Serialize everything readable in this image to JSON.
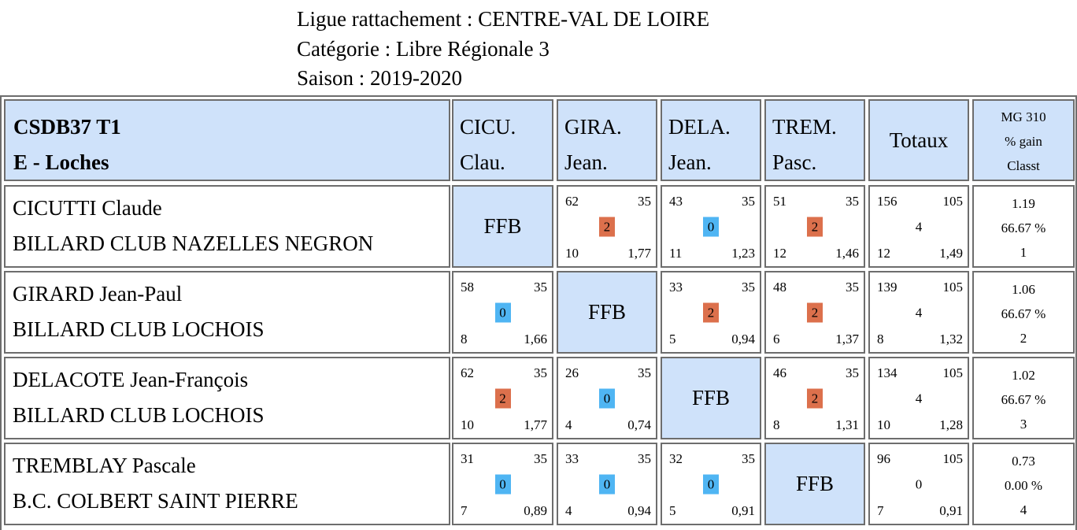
{
  "header": {
    "line1": "Ligue rattachement : CENTRE-VAL DE LOIRE",
    "line2": "Catégorie : Libre Régionale 3",
    "line3": "Saison : 2019-2020"
  },
  "table": {
    "team_line1": "CSDB37 T1",
    "team_line2": "E - Loches",
    "col_headers": [
      {
        "line1": "CICU.",
        "line2": "Clau."
      },
      {
        "line1": "GIRA.",
        "line2": "Jean."
      },
      {
        "line1": "DELA.",
        "line2": "Jean."
      },
      {
        "line1": "TREM.",
        "line2": "Pasc."
      }
    ],
    "totals_header": "Totaux",
    "mg_header": {
      "line1": "MG 310",
      "line2": "% gain",
      "line3": "Classt"
    },
    "self_label": "FFB",
    "colors": {
      "header_bg": "#cfe2fa",
      "win": "#dc704c",
      "loss": "#4fb5f3",
      "border": "#6d6d6d"
    },
    "rows": [
      {
        "name": "CICUTTI Claude",
        "club": "BILLARD CLUB NAZELLES NEGRON",
        "cells": [
          null,
          {
            "points": "62",
            "distance": "35",
            "match_points": "2",
            "innings": "10",
            "average": "1,77",
            "result": "win"
          },
          {
            "points": "43",
            "distance": "35",
            "match_points": "0",
            "innings": "11",
            "average": "1,23",
            "result": "loss"
          },
          {
            "points": "51",
            "distance": "35",
            "match_points": "2",
            "innings": "12",
            "average": "1,46",
            "result": "win"
          }
        ],
        "totals": {
          "points": "156",
          "distance": "105",
          "match_points": "4",
          "innings": "12",
          "average": "1,49"
        },
        "mg": {
          "mg": "1.19",
          "pct": "66.67 %",
          "rank": "1"
        }
      },
      {
        "name": "GIRARD Jean-Paul",
        "club": "BILLARD CLUB LOCHOIS",
        "cells": [
          {
            "points": "58",
            "distance": "35",
            "match_points": "0",
            "innings": "8",
            "average": "1,66",
            "result": "loss"
          },
          null,
          {
            "points": "33",
            "distance": "35",
            "match_points": "2",
            "innings": "5",
            "average": "0,94",
            "result": "win"
          },
          {
            "points": "48",
            "distance": "35",
            "match_points": "2",
            "innings": "6",
            "average": "1,37",
            "result": "win"
          }
        ],
        "totals": {
          "points": "139",
          "distance": "105",
          "match_points": "4",
          "innings": "8",
          "average": "1,32"
        },
        "mg": {
          "mg": "1.06",
          "pct": "66.67 %",
          "rank": "2"
        }
      },
      {
        "name": "DELACOTE Jean-François",
        "club": "BILLARD CLUB LOCHOIS",
        "cells": [
          {
            "points": "62",
            "distance": "35",
            "match_points": "2",
            "innings": "10",
            "average": "1,77",
            "result": "win"
          },
          {
            "points": "26",
            "distance": "35",
            "match_points": "0",
            "innings": "4",
            "average": "0,74",
            "result": "loss"
          },
          null,
          {
            "points": "46",
            "distance": "35",
            "match_points": "2",
            "innings": "8",
            "average": "1,31",
            "result": "win"
          }
        ],
        "totals": {
          "points": "134",
          "distance": "105",
          "match_points": "4",
          "innings": "10",
          "average": "1,28"
        },
        "mg": {
          "mg": "1.02",
          "pct": "66.67 %",
          "rank": "3"
        }
      },
      {
        "name": "TREMBLAY Pascale",
        "club": "B.C. COLBERT SAINT PIERRE",
        "cells": [
          {
            "points": "31",
            "distance": "35",
            "match_points": "0",
            "innings": "7",
            "average": "0,89",
            "result": "loss"
          },
          {
            "points": "33",
            "distance": "35",
            "match_points": "0",
            "innings": "4",
            "average": "0,94",
            "result": "loss"
          },
          {
            "points": "32",
            "distance": "35",
            "match_points": "0",
            "innings": "5",
            "average": "0,91",
            "result": "loss"
          },
          null
        ],
        "totals": {
          "points": "96",
          "distance": "105",
          "match_points": "0",
          "innings": "7",
          "average": "0,91"
        },
        "mg": {
          "mg": "0.73",
          "pct": "0.00 %",
          "rank": "4"
        }
      }
    ]
  }
}
